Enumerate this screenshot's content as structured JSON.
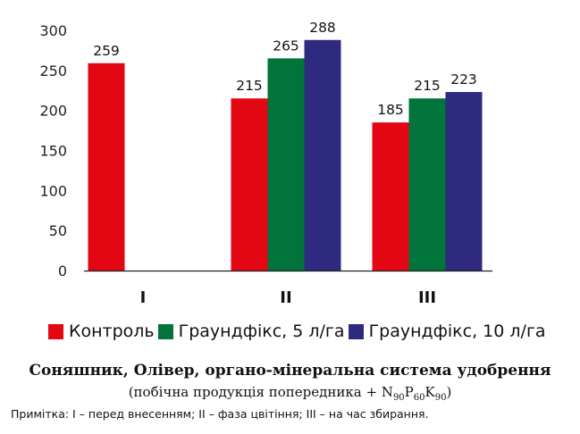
{
  "chart_data": {
    "type": "bar",
    "categories": [
      "I",
      "II",
      "III"
    ],
    "series": [
      {
        "name": "Контроль",
        "color": "#e30613",
        "values": [
          259,
          215,
          185
        ]
      },
      {
        "name": "Граундфікс, 5 л/га",
        "color": "#00743a",
        "values": [
          null,
          265,
          215
        ]
      },
      {
        "name": "Граундфікс, 10 л/га",
        "color": "#2e2a7f",
        "values": [
          null,
          288,
          223
        ]
      }
    ],
    "y_ticks": [
      "0",
      "50",
      "100",
      "150",
      "200",
      "250",
      "300"
    ],
    "ylim": [
      0,
      300
    ],
    "grid": false,
    "legend_position": "bottom",
    "title": "Соняшник, Олівер, органо-мінеральна система удобрення",
    "subtitle_main": "(побічна продукція попередника + N",
    "subtitle_sub1": "90",
    "subtitle_p": "P",
    "subtitle_sub2": "60",
    "subtitle_k": "K",
    "subtitle_sub3": "90",
    "subtitle_end": ")",
    "note": "Примітка: І – перед внесенням; ІІ – фаза цвітіння; ІІІ – на час збирання."
  }
}
